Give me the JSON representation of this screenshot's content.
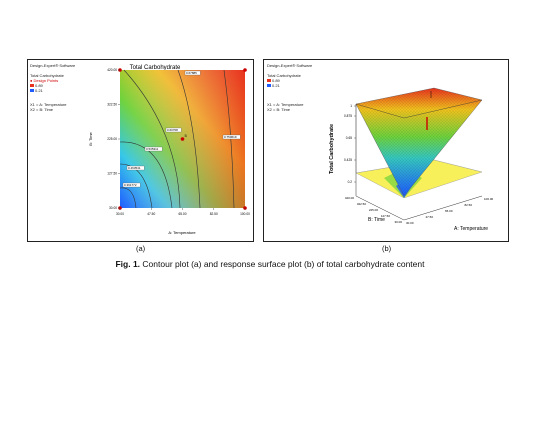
{
  "panel_a": {
    "software": "Design-Expert® Software",
    "response": "Total Carbohydrate",
    "design_points": "Design Points",
    "legend_hi": "0.89",
    "legend_lo": "0.21",
    "factor_x": "X1 = A: Temperature",
    "factor_y": "X2 = B: Time",
    "sublabel": "(a)"
  },
  "panel_b": {
    "software": "Design-Expert® Software",
    "response": "Total Carbohydrate",
    "legend_hi": "0.89",
    "legend_lo": "0.21",
    "factor_x": "X1 = A: Temperature",
    "factor_y": "X2 = B: Time",
    "sublabel": "(b)"
  },
  "caption": {
    "fig": "Fig. 1.",
    "text": " Contour plot (a) and response surface plot (b) of total carbohydrate content"
  },
  "colors": {
    "hot": "#e8321e",
    "warm": "#f0c21e",
    "mid": "#6ed23c",
    "cool": "#1e5aff"
  },
  "chart_data": [
    {
      "type": "heatmap",
      "subtype": "contour",
      "title": "Total Carbohydrate",
      "xlabel": "A: Temperature",
      "ylabel": "B: Time",
      "x_ticks": [
        "30.00",
        "47.50",
        "65.00",
        "82.50",
        "100.00"
      ],
      "y_ticks": [
        "30.00",
        "127.50",
        "225.00",
        "322.50",
        "420.00"
      ],
      "xlim": [
        30,
        100
      ],
      "ylim": [
        30,
        420
      ],
      "contour_levels": [
        "0.391772",
        "0.463541",
        "0.535311",
        "0.60708",
        "0.67885",
        "0.750619"
      ],
      "center_point_label": "5",
      "grid": false
    },
    {
      "type": "surface",
      "zlabel": "Total Carbohydrate",
      "xlabel": "A: Temperature",
      "ylabel": "B: Time",
      "z_ticks": [
        "0.2",
        "0.425",
        "0.65",
        "0.875",
        "1"
      ],
      "x_ticks": [
        "30.00",
        "47.50",
        "65.00",
        "82.50",
        "100.00"
      ],
      "y_ticks": [
        "30.00",
        "127.50",
        "225.00",
        "322.50",
        "420.00"
      ]
    }
  ]
}
